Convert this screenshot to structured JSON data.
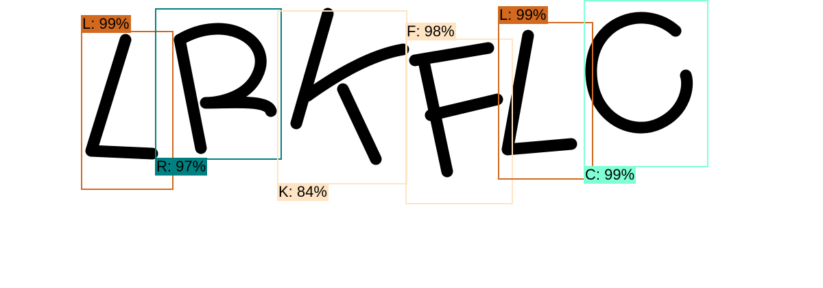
{
  "detections": [
    {
      "label": "L: 99%",
      "color": "#d2691e"
    },
    {
      "label": "R: 97%",
      "color": "#008080"
    },
    {
      "label": "K: 84%",
      "color": "#ffe4c4"
    },
    {
      "label": "F: 98%",
      "color": "#ffe4c4"
    },
    {
      "label": "L: 99%",
      "color": "#d2691e"
    },
    {
      "label": "C: 99%",
      "color": "#7fffd4"
    }
  ]
}
